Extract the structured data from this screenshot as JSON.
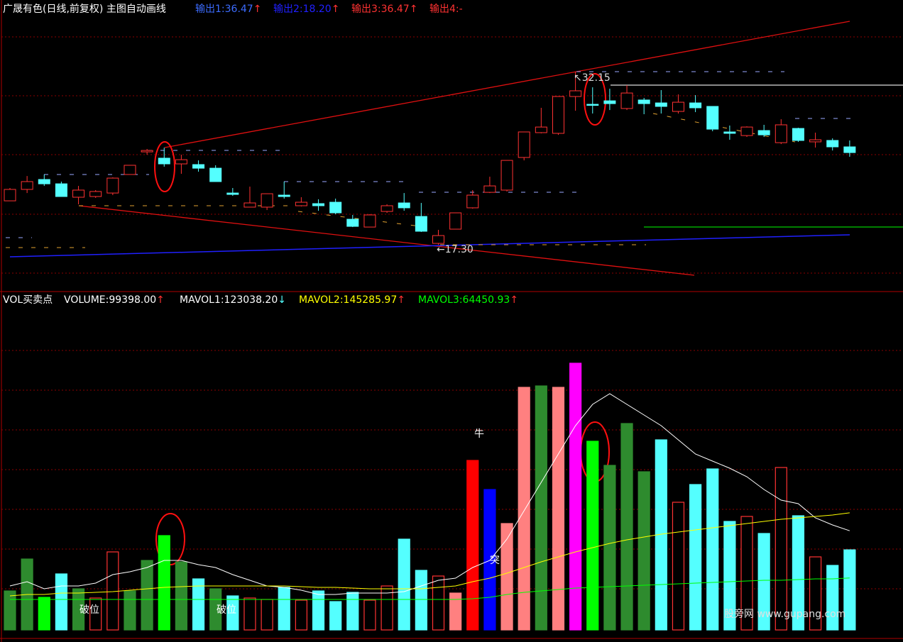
{
  "chart_data": [
    {
      "type": "candlestick",
      "title": "广晟有色(日线,前复权) 主图自动画线",
      "legend": [
        {
          "label": "输出1:36.47",
          "arrow": "↑",
          "color": "#3c6cff"
        },
        {
          "label": "输出2:18.20",
          "arrow": "↑",
          "color": "#2020ff"
        },
        {
          "label": "输出3:36.47",
          "arrow": "↑",
          "color": "#ff3232"
        },
        {
          "label": "输出4:-",
          "color": "#ff3232"
        }
      ],
      "annotations": [
        "↖32.15",
        "←17.30"
      ],
      "up_color": "#ff3232",
      "down_color": "#54ffff",
      "ylim": [
        14.26,
        36.96
      ],
      "open": [
        21.07,
        22.05,
        22.9,
        22.53,
        21.38,
        21.44,
        21.74,
        23.33,
        25.27,
        24.73,
        24.24,
        24.18,
        23.87,
        21.74,
        20.53,
        20.53,
        21.56,
        20.65,
        20.83,
        20.95,
        19.49,
        18.82,
        20.16,
        20.89,
        19.73,
        17.42,
        18.64,
        20.47,
        21.8,
        21.99,
        24.79,
        26.92,
        26.86,
        30.02,
        29.35,
        29.65,
        28.99,
        29.72,
        29.47,
        28.74,
        29.47,
        29.17,
        26.98,
        26.67,
        27.1,
        26.06,
        27.28,
        26.13,
        26.25,
        25.7
      ],
      "high": [
        22.17,
        23.2,
        23.33,
        22.72,
        22.35,
        21.99,
        23.08,
        24.12,
        25.52,
        25.64,
        25.03,
        24.54,
        24.12,
        22.17,
        22.29,
        21.68,
        22.72,
        21.38,
        21.2,
        21.26,
        19.86,
        19.92,
        20.77,
        21.74,
        20.89,
        18.58,
        20.04,
        21.99,
        23.14,
        24.54,
        26.98,
        29.05,
        30.02,
        32.15,
        30.81,
        30.69,
        30.99,
        29.9,
        30.57,
        30.2,
        30.14,
        29.17,
        27.53,
        27.46,
        27.59,
        28.07,
        27.34,
        26.92,
        26.43,
        26.25
      ],
      "low": [
        21.07,
        21.74,
        22.35,
        21.44,
        20.77,
        21.32,
        21.56,
        23.33,
        25.03,
        24.0,
        23.39,
        23.57,
        22.72,
        21.5,
        20.53,
        20.28,
        21.26,
        20.59,
        20.22,
        19.92,
        18.82,
        18.82,
        20.04,
        20.22,
        18.4,
        17.3,
        18.64,
        20.4,
        21.74,
        21.87,
        24.54,
        26.86,
        26.73,
        28.8,
        28.56,
        28.86,
        28.86,
        28.5,
        28.56,
        28.56,
        28.68,
        27.04,
        26.31,
        26.55,
        26.55,
        25.94,
        26.13,
        25.64,
        25.39,
        24.85
      ],
      "close": [
        22.05,
        22.72,
        22.53,
        21.44,
        21.99,
        21.87,
        23.02,
        24.12,
        25.39,
        24.24,
        24.6,
        23.87,
        22.72,
        21.62,
        20.89,
        21.68,
        21.44,
        20.95,
        20.65,
        20.04,
        18.88,
        19.86,
        20.65,
        20.47,
        18.46,
        18.09,
        20.04,
        21.56,
        22.35,
        24.54,
        26.98,
        27.4,
        30.02,
        30.51,
        29.29,
        29.41,
        30.32,
        29.41,
        29.17,
        29.53,
        29.05,
        27.22,
        26.86,
        27.4,
        26.73,
        27.59,
        26.25,
        26.31,
        25.7,
        25.21
      ]
    },
    {
      "type": "bar",
      "title": "VOL买卖点",
      "legend": [
        {
          "label": "VOLUME:99398.00",
          "arrow": "↑",
          "color": "#ffffff",
          "arrow_color": "#ff3232"
        },
        {
          "label": "MAVOL1:123038.20",
          "arrow": "↓",
          "color": "#ffffff",
          "arrow_color": "#54ffff"
        },
        {
          "label": "MAVOL2:145285.97",
          "arrow": "↑",
          "color": "#ffff00",
          "arrow_color": "#ff3232"
        },
        {
          "label": "MAVOL3:64450.93",
          "arrow": "↑",
          "color": "#00ff00",
          "arrow_color": "#ff3232"
        }
      ],
      "annotations": [
        "破位",
        "破位",
        "牛",
        "突"
      ],
      "watermark": "股旁网 www.gupang.com",
      "ylim": [
        0,
        403040
      ],
      "hollow_color": "#ff3232",
      "values": [
        48400,
        88000,
        40480,
        69520,
        51040,
        39600,
        96800,
        48400,
        86240,
        117040,
        84480,
        63360,
        51040,
        42240,
        39600,
        37840,
        52800,
        36960,
        48400,
        35200,
        46640,
        36960,
        54560,
        112640,
        73920,
        66880,
        45760,
        210320,
        174240,
        132000,
        300960,
        302720,
        300960,
        330880,
        234080,
        204160,
        256080,
        196240,
        235840,
        158400,
        180400,
        199760,
        134640,
        140800,
        119680,
        201520,
        141680,
        90640,
        80080,
        99398
      ],
      "colors": [
        "#2e8b2e",
        "#2e8b2e",
        "#00ff00",
        "#54ffff",
        "#2e8b2e",
        "#ff3232",
        "#ff3232",
        "#2e8b2e",
        "#2e8b2e",
        "#00ff00",
        "#2e8b2e",
        "#54ffff",
        "#2e8b2e",
        "#54ffff",
        "#ff3232",
        "#ff3232",
        "#54ffff",
        "#ff3232",
        "#54ffff",
        "#54ffff",
        "#54ffff",
        "#ff3232",
        "#ff3232",
        "#54ffff",
        "#54ffff",
        "#ff3232",
        "#ff8080",
        "#ff0000",
        "#0000ff",
        "#ff8080",
        "#ff8080",
        "#2e8b2e",
        "#ff8080",
        "#ff00ff",
        "#00ff00",
        "#2e8b2e",
        "#2e8b2e",
        "#2e8b2e",
        "#54ffff",
        "#ff3232",
        "#54ffff",
        "#54ffff",
        "#54ffff",
        "#ff3232",
        "#54ffff",
        "#ff3232",
        "#54ffff",
        "#ff3232",
        "#54ffff",
        "#54ffff"
      ],
      "series": [
        {
          "name": "MAVOL1",
          "color": "#ffffff",
          "values": [
            54560,
            59840,
            51040,
            54560,
            54560,
            58080,
            68640,
            72160,
            77440,
            86240,
            86240,
            80960,
            77440,
            68640,
            61600,
            54560,
            52800,
            49280,
            44000,
            44000,
            45760,
            45760,
            45760,
            47520,
            54560,
            61600,
            64240,
            77440,
            86240,
            112640,
            147840,
            183040,
            218240,
            253440,
            279840,
            293040,
            279840,
            266640,
            253440,
            235840,
            218240,
            209440,
            200640,
            190080,
            174240,
            161040,
            156640,
            139040,
            130240,
            123038.2
          ]
        },
        {
          "name": "MAVOL2",
          "color": "#ffff00",
          "values": [
            42240,
            44000,
            44000,
            45760,
            45760,
            46640,
            47520,
            49280,
            51040,
            52800,
            53680,
            54560,
            54560,
            54560,
            54560,
            54560,
            54560,
            53680,
            52800,
            52800,
            51920,
            51040,
            51040,
            51040,
            51040,
            52800,
            54560,
            59840,
            64240,
            70400,
            77440,
            84480,
            90640,
            96800,
            102080,
            107360,
            111760,
            115280,
            118800,
            121440,
            124080,
            126720,
            129360,
            132000,
            134640,
            137280,
            139040,
            140800,
            142560,
            145285.97
          ]
        },
        {
          "name": "MAVOL3",
          "color": "#00ff00",
          "values": [
            37840,
            37840,
            37840,
            37840,
            37840,
            37840,
            37840,
            37840,
            37840,
            37840,
            37840,
            37840,
            37840,
            37840,
            37840,
            37840,
            37840,
            37840,
            37840,
            37840,
            37840,
            37840,
            37840,
            37840,
            37840,
            37840,
            37840,
            38720,
            40480,
            44000,
            46640,
            48400,
            50160,
            51920,
            52800,
            53680,
            54560,
            55440,
            56320,
            57200,
            58080,
            58960,
            59840,
            60720,
            61600,
            61600,
            62480,
            63360,
            63360,
            64450.93
          ]
        }
      ]
    }
  ]
}
